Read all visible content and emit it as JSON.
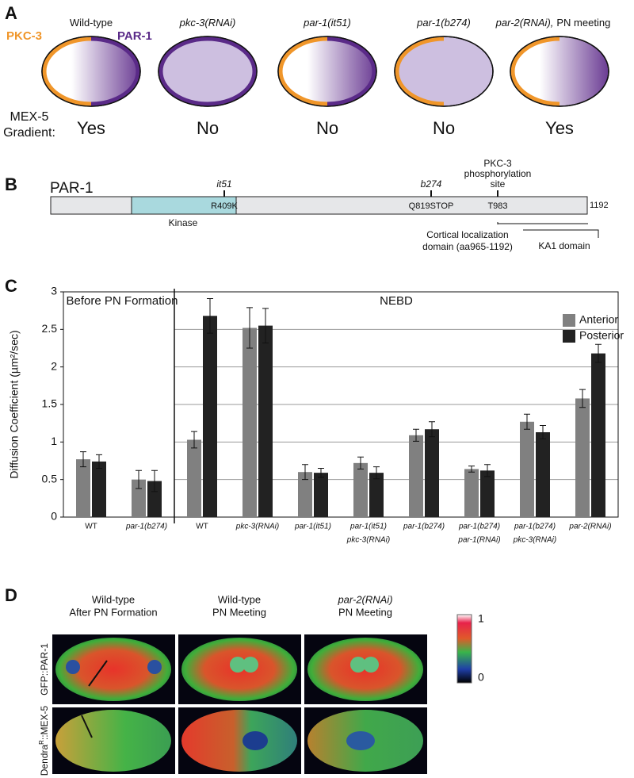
{
  "panel_a": {
    "label": "A",
    "pkc3_label": "PKC-3",
    "par1_label": "PAR-1",
    "gradient_label": [
      "MEX-5",
      "Gradient:"
    ],
    "embryos": [
      {
        "title": "Wild-type",
        "italic": false,
        "answer": "Yes",
        "pkc3_cortex": true,
        "par1_cortex": "posterior",
        "cytoplasm": "gradient"
      },
      {
        "title": "pkc-3(RNAi)",
        "italic": true,
        "answer": "No",
        "pkc3_cortex": false,
        "par1_cortex": "full",
        "cytoplasm": "uniform"
      },
      {
        "title": "par-1(it51)",
        "italic": true,
        "answer": "No",
        "pkc3_cortex": true,
        "par1_cortex": "posterior",
        "cytoplasm": "gradient"
      },
      {
        "title": "par-1(b274)",
        "italic": true,
        "answer": "No",
        "pkc3_cortex": true,
        "par1_cortex": "none",
        "cytoplasm": "uniform"
      },
      {
        "title": "par-2(RNAi),",
        "note": "PN meeting",
        "italic": true,
        "answer": "Yes",
        "pkc3_cortex": true,
        "par1_cortex": "none",
        "cytoplasm": "gradient"
      }
    ]
  },
  "panel_b": {
    "label": "B",
    "protein": "PAR-1",
    "length": 1192,
    "domain": "Kinase",
    "sites": [
      {
        "allele": [
          "it51"
        ],
        "italic": true,
        "change": "R409K"
      },
      {
        "allele": [
          "b274"
        ],
        "italic": true,
        "change": "Q819STOP"
      },
      {
        "allele": [
          "PKC-3",
          "phosphorylation",
          "site"
        ],
        "italic": false,
        "change": "T983"
      }
    ],
    "cortical": [
      "Cortical localization",
      "domain (aa965-1192)"
    ],
    "ka1": "KA1 domain"
  },
  "chart_data": {
    "type": "bar",
    "label": "C",
    "y_label": "Diffusion Coefficient (µm²/sec)",
    "groups": [
      {
        "label": "Before PN Formation",
        "categories": [
          [
            "WT"
          ],
          [
            "par-1(b274)"
          ]
        ],
        "italic": [
          false,
          true
        ]
      },
      {
        "label": "NEBD",
        "categories": [
          [
            "WT"
          ],
          [
            "pkc-3(RNAi)"
          ],
          [
            "par-1(it51)"
          ],
          [
            "par-1(it51)",
            "pkc-3(RNAi)"
          ],
          [
            "par-1(b274)"
          ],
          [
            "par-1(b274)",
            "par-1(RNAi)"
          ],
          [
            "par-1(b274)",
            "pkc-3(RNAi)"
          ],
          [
            "par-2(RNAi)"
          ]
        ],
        "italic": [
          false,
          true,
          true,
          true,
          true,
          true,
          true,
          true
        ]
      }
    ],
    "series": [
      {
        "name": "Anterior",
        "color": "#808080",
        "values": [
          0.77,
          0.5,
          1.03,
          2.52,
          0.6,
          0.72,
          1.09,
          0.64,
          1.27,
          1.58
        ],
        "errors": [
          0.1,
          0.12,
          0.11,
          0.27,
          0.1,
          0.08,
          0.08,
          0.04,
          0.1,
          0.12
        ]
      },
      {
        "name": "Posterior",
        "color": "#222222",
        "values": [
          0.74,
          0.48,
          2.68,
          2.55,
          0.59,
          0.59,
          1.17,
          0.62,
          1.13,
          2.18
        ],
        "errors": [
          0.09,
          0.14,
          0.23,
          0.23,
          0.06,
          0.08,
          0.1,
          0.08,
          0.09,
          0.12
        ]
      }
    ],
    "ylim": [
      0,
      3
    ],
    "yticks": [
      0,
      0.5,
      1,
      1.5,
      2,
      2.5,
      3
    ],
    "grid": true,
    "legend": "top-right"
  },
  "panel_d": {
    "label": "D",
    "columns": [
      {
        "lines": [
          "Wild-type",
          "After PN Formation"
        ],
        "italic_first": false
      },
      {
        "lines": [
          "Wild-type",
          "PN Meeting"
        ],
        "italic_first": false
      },
      {
        "lines": [
          "par-2(RNAi)",
          "PN Meeting"
        ],
        "italic_first": true
      }
    ],
    "rows": [
      [
        "GFP::PAR-1"
      ],
      [
        "Dendra",
        "R",
        "::MEX-5"
      ]
    ],
    "colorbar": {
      "max": 1,
      "min": 0
    }
  }
}
